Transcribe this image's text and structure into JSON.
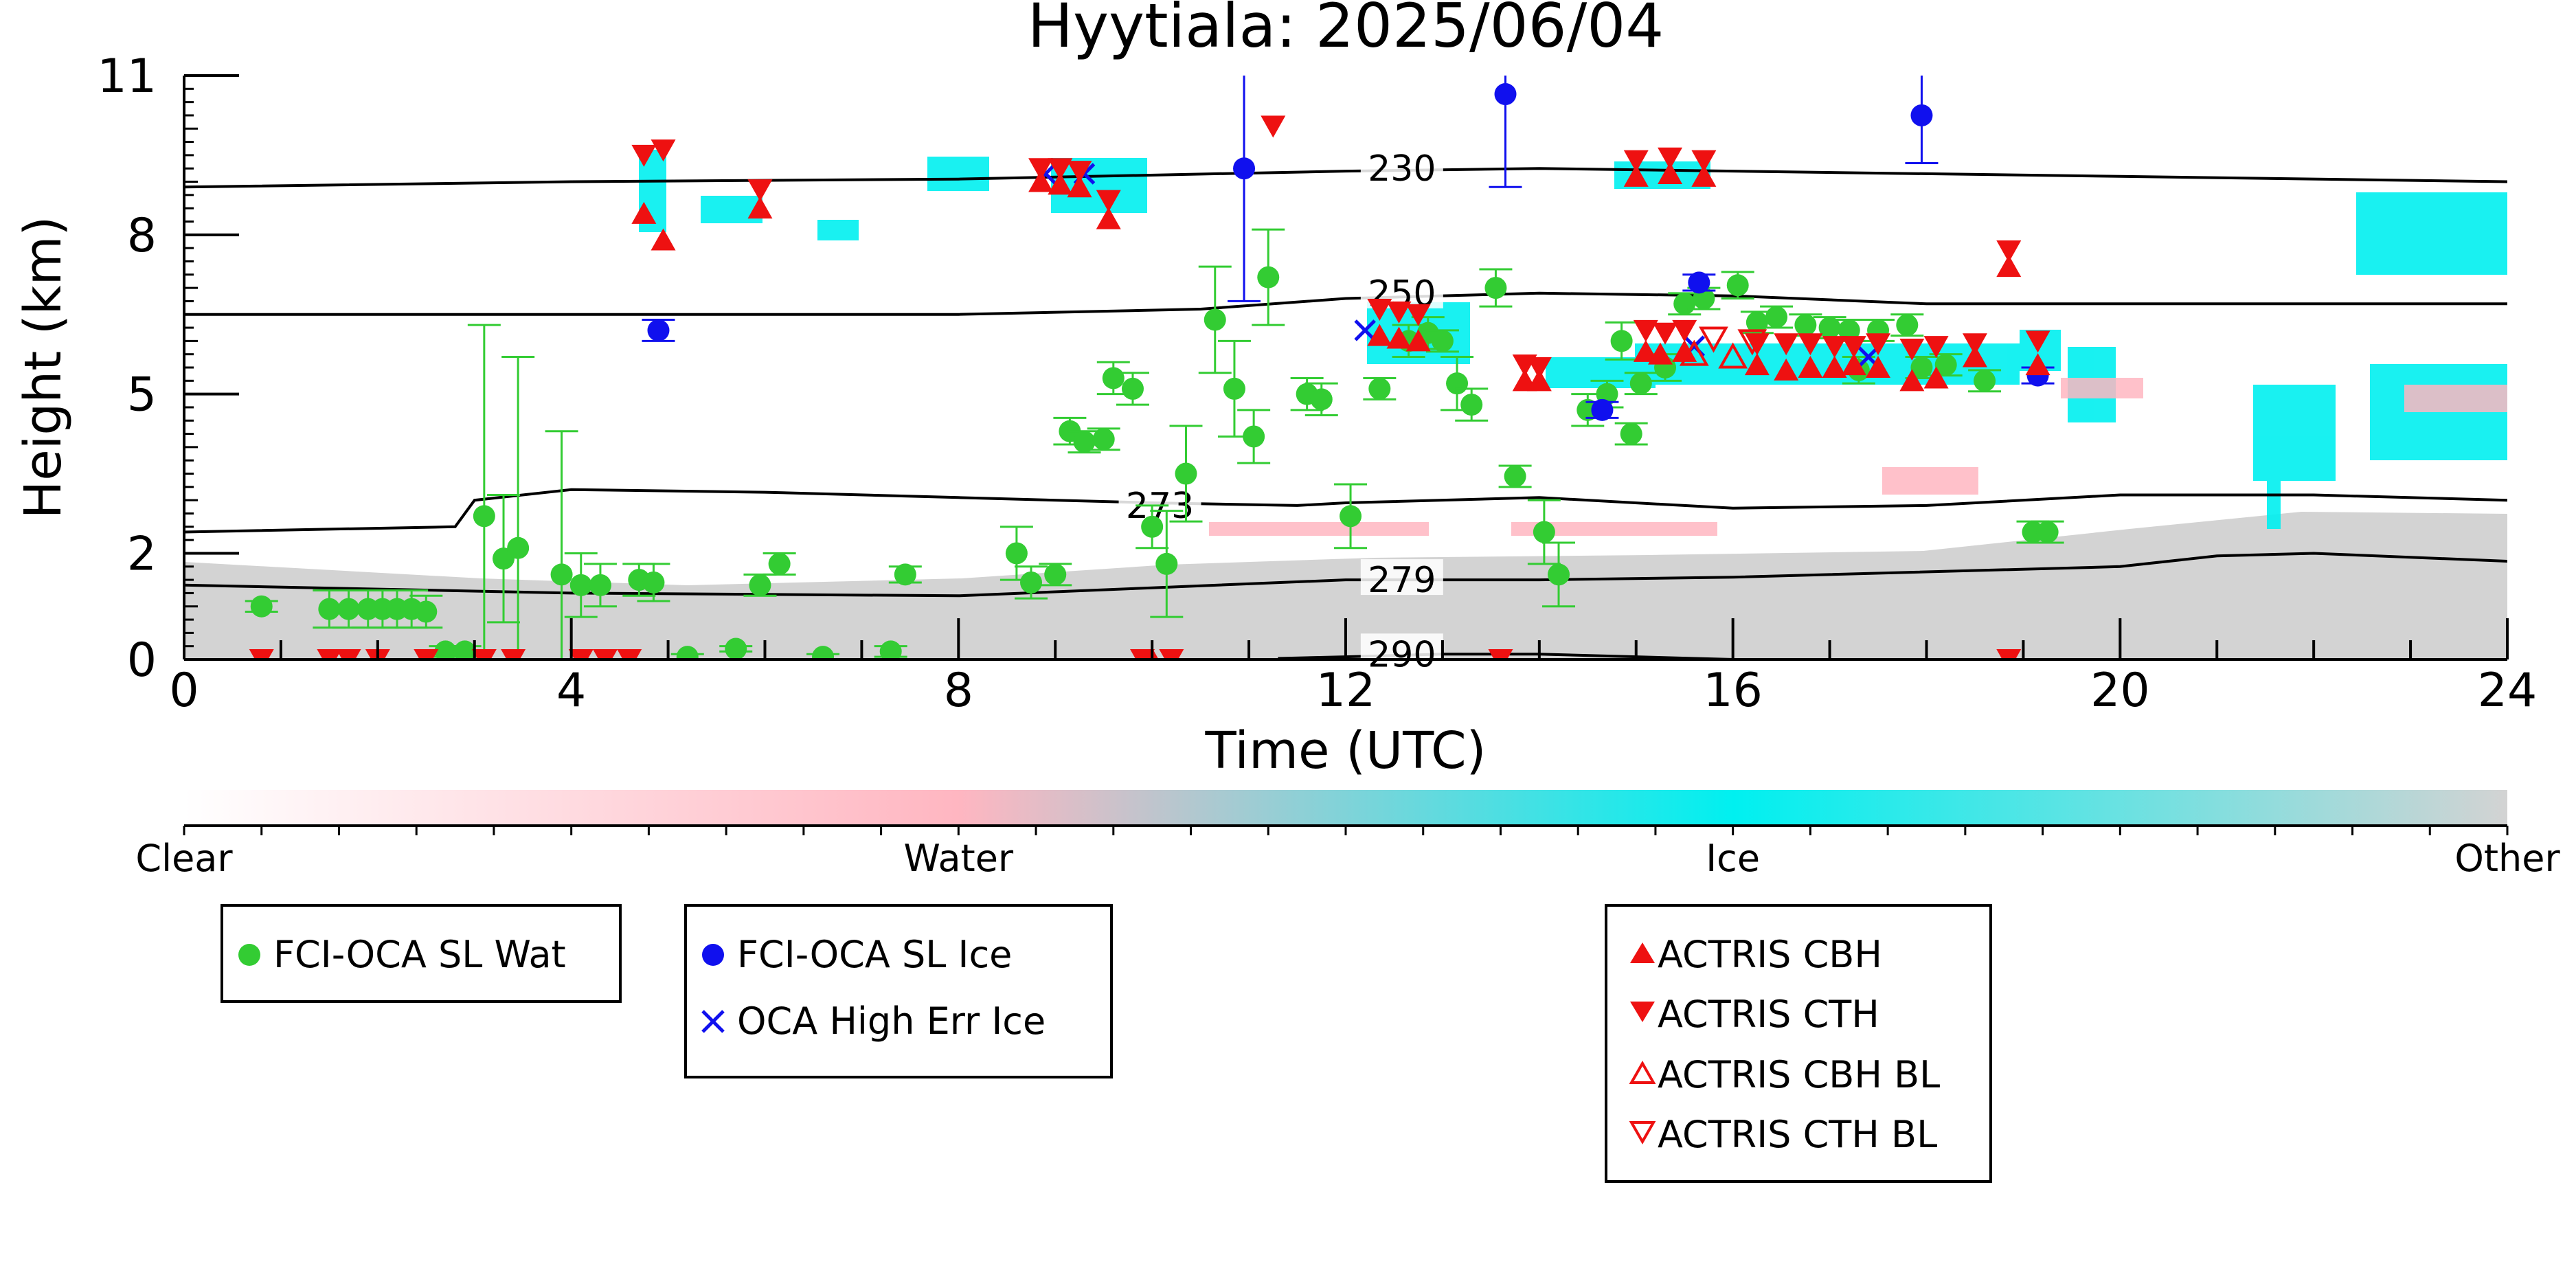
{
  "chart_data": {
    "type": "scatter",
    "title": "Hyytiala: 2025/06/04",
    "xlabel": "Time (UTC)",
    "ylabel": "Height (km)",
    "xlim": [
      0,
      24
    ],
    "ylim": [
      0,
      11
    ],
    "x_ticks": [
      "0",
      "4",
      "8",
      "12",
      "16",
      "20",
      "24"
    ],
    "y_ticks": [
      "0",
      "2",
      "5",
      "8",
      "11"
    ],
    "colorbar": {
      "labels": [
        "Clear",
        "Water",
        "Ice",
        "Other"
      ],
      "colors": [
        "#ffffff",
        "#ffb6c1",
        "#00f0f0",
        "#d3d3d3"
      ]
    },
    "contours": [
      {
        "label": "230",
        "points": [
          [
            0,
            8.9
          ],
          [
            4,
            9.0
          ],
          [
            8,
            9.05
          ],
          [
            12,
            9.2
          ],
          [
            14,
            9.25
          ],
          [
            16,
            9.2
          ],
          [
            20,
            9.1
          ],
          [
            24,
            9.0
          ]
        ]
      },
      {
        "label": "250",
        "points": [
          [
            0,
            6.5
          ],
          [
            4,
            6.5
          ],
          [
            8,
            6.5
          ],
          [
            10.5,
            6.6
          ],
          [
            12,
            6.8
          ],
          [
            14,
            6.9
          ],
          [
            16,
            6.85
          ],
          [
            18,
            6.7
          ],
          [
            20,
            6.7
          ],
          [
            24,
            6.7
          ]
        ]
      },
      {
        "label": "273",
        "points": [
          [
            0,
            2.4
          ],
          [
            2.8,
            2.5
          ],
          [
            3,
            3.0
          ],
          [
            4,
            3.2
          ],
          [
            6,
            3.15
          ],
          [
            8,
            3.05
          ],
          [
            10,
            2.95
          ],
          [
            11.5,
            2.9
          ],
          [
            12,
            2.95
          ],
          [
            14,
            3.05
          ],
          [
            16,
            2.85
          ],
          [
            18,
            2.9
          ],
          [
            20,
            3.1
          ],
          [
            22,
            3.1
          ],
          [
            24,
            3.0
          ]
        ]
      },
      {
        "label": "279",
        "points": [
          [
            0,
            1.4
          ],
          [
            4,
            1.25
          ],
          [
            8,
            1.2
          ],
          [
            10,
            1.35
          ],
          [
            12,
            1.5
          ],
          [
            14,
            1.5
          ],
          [
            16,
            1.55
          ],
          [
            20,
            1.75
          ],
          [
            21,
            1.95
          ],
          [
            22,
            2.0
          ],
          [
            24,
            1.85
          ]
        ]
      },
      {
        "label": "290",
        "points": [
          [
            11.3,
            0.02
          ],
          [
            12,
            0.05
          ],
          [
            13,
            0.1
          ],
          [
            14,
            0.1
          ],
          [
            15,
            0.05
          ],
          [
            16,
            0.0
          ]
        ]
      }
    ],
    "series": [
      {
        "name": "FCI-OCA SL Wat",
        "color": "#33cc33",
        "marker": "circle",
        "points": [
          [
            0.8,
            1.0,
            0.1
          ],
          [
            1.5,
            0.95,
            0.35
          ],
          [
            1.7,
            0.95,
            0.35
          ],
          [
            1.9,
            0.95,
            0.35
          ],
          [
            2.05,
            0.95,
            0.35
          ],
          [
            2.2,
            0.95,
            0.35
          ],
          [
            2.35,
            0.95,
            0.35
          ],
          [
            2.5,
            0.9,
            0.3
          ],
          [
            2.7,
            0.15,
            0.1
          ],
          [
            2.9,
            0.15,
            0.1
          ],
          [
            3.1,
            2.7,
            3.6
          ],
          [
            3.3,
            1.9,
            1.2
          ],
          [
            3.45,
            2.1,
            3.6
          ],
          [
            3.9,
            1.6,
            2.7
          ],
          [
            4.1,
            1.4,
            0.6
          ],
          [
            4.3,
            1.4,
            0.4
          ],
          [
            4.7,
            1.5,
            0.3
          ],
          [
            4.85,
            1.45,
            0.35
          ],
          [
            5.2,
            0.05,
            0.05
          ],
          [
            5.7,
            0.2,
            0.05
          ],
          [
            5.95,
            1.4,
            0.2
          ],
          [
            6.15,
            1.8,
            0.2
          ],
          [
            6.6,
            0.05,
            0.05
          ],
          [
            7.3,
            0.15,
            0.1
          ],
          [
            7.45,
            1.6,
            0.15
          ],
          [
            8.6,
            2.0,
            0.5
          ],
          [
            8.75,
            1.45,
            0.3
          ],
          [
            9.0,
            1.6,
            0.2
          ],
          [
            9.15,
            4.3,
            0.25
          ],
          [
            9.3,
            4.1,
            0.2
          ],
          [
            9.5,
            4.15,
            0.2
          ],
          [
            9.6,
            5.3,
            0.3
          ],
          [
            9.8,
            5.1,
            0.3
          ],
          [
            10.0,
            2.5,
            0.4
          ],
          [
            10.15,
            1.8,
            1.0
          ],
          [
            10.35,
            3.5,
            0.9
          ],
          [
            10.65,
            6.4,
            1.0
          ],
          [
            10.85,
            5.1,
            0.9
          ],
          [
            11.05,
            4.2,
            0.5
          ],
          [
            11.2,
            7.2,
            0.9
          ],
          [
            11.6,
            5.0,
            0.3
          ],
          [
            11.75,
            4.9,
            0.3
          ],
          [
            12.05,
            2.7,
            0.6
          ],
          [
            12.35,
            5.1,
            0.2
          ],
          [
            12.65,
            6.0,
            0.3
          ],
          [
            12.85,
            6.15,
            0.3
          ],
          [
            13.0,
            6.0,
            0.2
          ],
          [
            13.15,
            5.2,
            0.5
          ],
          [
            13.3,
            4.8,
            0.3
          ],
          [
            13.55,
            7.0,
            0.35
          ],
          [
            13.75,
            3.45,
            0.2
          ],
          [
            14.05,
            2.4,
            0.6
          ],
          [
            14.2,
            1.6,
            0.6
          ],
          [
            14.5,
            4.7,
            0.3
          ],
          [
            14.7,
            5.0,
            0.25
          ],
          [
            14.85,
            6.0,
            0.35
          ],
          [
            14.95,
            4.25,
            0.2
          ],
          [
            15.05,
            5.2,
            0.2
          ],
          [
            15.3,
            5.5,
            0.25
          ],
          [
            15.5,
            6.7,
            0.2
          ],
          [
            15.7,
            6.8,
            0.2
          ],
          [
            16.05,
            7.05,
            0.25
          ],
          [
            16.25,
            6.35,
            0.2
          ],
          [
            16.45,
            6.45,
            0.2
          ],
          [
            16.75,
            6.3,
            0.2
          ],
          [
            17.0,
            6.25,
            0.2
          ],
          [
            17.2,
            6.2,
            0.2
          ],
          [
            17.3,
            5.45,
            0.25
          ],
          [
            17.5,
            6.2,
            0.2
          ],
          [
            17.8,
            6.3,
            0.2
          ],
          [
            17.95,
            5.5,
            0.2
          ],
          [
            18.2,
            5.55,
            0.2
          ],
          [
            18.6,
            5.25,
            0.2
          ],
          [
            19.1,
            2.4,
            0.2
          ],
          [
            19.25,
            2.4,
            0.2
          ]
        ]
      },
      {
        "name": "FCI-OCA SL Ice",
        "color": "#1010ee",
        "marker": "circle",
        "points": [
          [
            4.9,
            6.2,
            0.2
          ],
          [
            10.95,
            9.25,
            2.5
          ],
          [
            13.65,
            10.65,
            1.75
          ],
          [
            14.65,
            4.7,
            0.15
          ],
          [
            15.65,
            7.1,
            0.15
          ],
          [
            17.95,
            10.25,
            0.9
          ],
          [
            19.15,
            5.35,
            0.15
          ]
        ]
      },
      {
        "name": "OCA High Err Ice",
        "color": "#1010ee",
        "marker": "x",
        "points": [
          [
            8.9,
            9.15
          ],
          [
            9.3,
            9.15
          ],
          [
            12.2,
            6.2
          ],
          [
            15.6,
            5.9
          ],
          [
            17.4,
            5.7
          ]
        ]
      },
      {
        "name": "ACTRIS CBH",
        "color": "#ee1111",
        "marker": "triangle-up",
        "points": [
          [
            4.75,
            8.4
          ],
          [
            4.95,
            7.9
          ],
          [
            5.95,
            8.5
          ],
          [
            8.85,
            9.0
          ],
          [
            9.05,
            8.95
          ],
          [
            9.25,
            8.9
          ],
          [
            9.55,
            8.3
          ],
          [
            10.0,
            0.0
          ],
          [
            12.35,
            6.1
          ],
          [
            12.55,
            6.05
          ],
          [
            12.75,
            6.0
          ],
          [
            13.85,
            5.25
          ],
          [
            14.0,
            5.25
          ],
          [
            15.1,
            5.8
          ],
          [
            15.25,
            5.75
          ],
          [
            15.5,
            5.8
          ],
          [
            16.25,
            5.55
          ],
          [
            16.55,
            5.45
          ],
          [
            16.8,
            5.5
          ],
          [
            17.05,
            5.5
          ],
          [
            17.25,
            5.55
          ],
          [
            17.5,
            5.5
          ],
          [
            17.85,
            5.25
          ],
          [
            18.1,
            5.3
          ],
          [
            18.5,
            5.7
          ],
          [
            18.85,
            7.4
          ],
          [
            19.15,
            5.55
          ],
          [
            15.0,
            9.1
          ],
          [
            15.35,
            9.15
          ],
          [
            15.7,
            9.1
          ]
        ]
      },
      {
        "name": "ACTRIS CTH",
        "color": "#ee1111",
        "marker": "triangle-down",
        "points": [
          [
            0.8,
            0.0
          ],
          [
            1.5,
            0.0
          ],
          [
            1.7,
            0.0
          ],
          [
            2.0,
            0.0
          ],
          [
            2.5,
            0.0
          ],
          [
            3.1,
            0.0
          ],
          [
            3.4,
            0.0
          ],
          [
            4.1,
            0.0
          ],
          [
            4.35,
            0.0
          ],
          [
            4.6,
            0.0
          ],
          [
            4.75,
            9.5
          ],
          [
            4.95,
            9.6
          ],
          [
            5.95,
            8.85
          ],
          [
            8.85,
            9.25
          ],
          [
            9.05,
            9.25
          ],
          [
            9.25,
            9.2
          ],
          [
            9.55,
            8.65
          ],
          [
            9.9,
            0.0
          ],
          [
            10.2,
            0.0
          ],
          [
            11.25,
            10.05
          ],
          [
            12.35,
            6.6
          ],
          [
            12.55,
            6.55
          ],
          [
            12.75,
            6.5
          ],
          [
            13.85,
            5.55
          ],
          [
            14.0,
            5.5
          ],
          [
            15.1,
            6.2
          ],
          [
            15.3,
            6.15
          ],
          [
            15.5,
            6.2
          ],
          [
            16.25,
            5.95
          ],
          [
            16.55,
            5.95
          ],
          [
            16.8,
            5.95
          ],
          [
            17.05,
            5.9
          ],
          [
            17.25,
            5.9
          ],
          [
            17.5,
            5.95
          ],
          [
            17.85,
            5.85
          ],
          [
            18.1,
            5.9
          ],
          [
            18.5,
            5.95
          ],
          [
            18.85,
            7.7
          ],
          [
            19.15,
            6.0
          ],
          [
            13.6,
            0.0
          ],
          [
            18.85,
            0.0
          ],
          [
            15.0,
            9.4
          ],
          [
            15.35,
            9.45
          ],
          [
            15.7,
            9.4
          ]
        ]
      },
      {
        "name": "ACTRIS CBH BL",
        "color": "#ee1111",
        "marker": "triangle-up-open",
        "points": [
          [
            15.6,
            5.75
          ],
          [
            16.0,
            5.7
          ]
        ]
      },
      {
        "name": "ACTRIS CTH BL",
        "color": "#ee1111",
        "marker": "triangle-down-open",
        "points": [
          [
            15.8,
            6.05
          ],
          [
            16.2,
            6.0
          ]
        ]
      }
    ]
  }
}
